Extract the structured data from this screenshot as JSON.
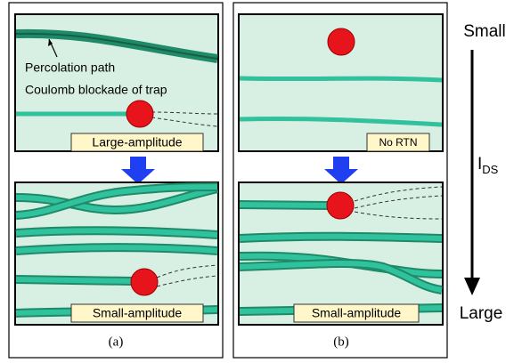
{
  "panels": {
    "a": {
      "annotations": [
        "Percolation path",
        "Coulomb blockade of trap"
      ],
      "top_label": "Large-amplitude",
      "bottom_label": "Small-amplitude",
      "caption": "(a)"
    },
    "b": {
      "top_label": "No RTN",
      "bottom_label": "Small-amplitude",
      "caption": "(b)"
    }
  },
  "axis": {
    "top": "Small",
    "label": "I",
    "label_sub": "DS",
    "bottom": "Large"
  }
}
